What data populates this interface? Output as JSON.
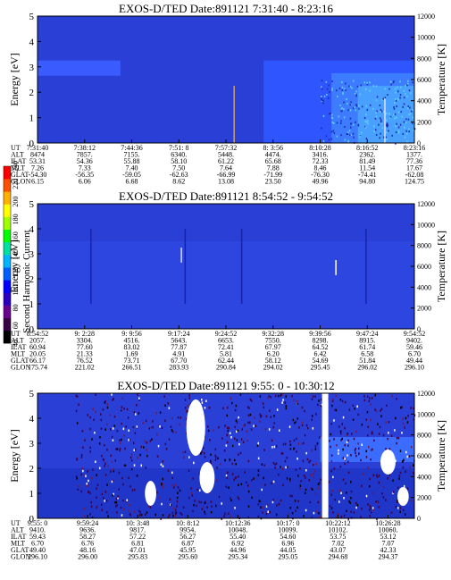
{
  "colorbar": {
    "label": "Second Harmonic Current",
    "ticks": [
      "40",
      "60",
      "80",
      "100",
      "120",
      "140",
      "160",
      "180",
      "200",
      "220",
      "240"
    ],
    "colors": [
      "#000000",
      "#3a0046",
      "#6a0090",
      "#2a00c0",
      "#0000ff",
      "#0060ff",
      "#00b4ff",
      "#00e0a0",
      "#00ff00",
      "#a0ff00",
      "#ffff00",
      "#ffb000",
      "#ff5000",
      "#ff0000"
    ]
  },
  "chart_data": [
    {
      "type": "heatmap",
      "title": "EXOS-D/TED  Date:891121  7:31:40 - 8:23:16",
      "ylabel": "Energy [eV]",
      "y2label": "Temperature [K]",
      "ylim": [
        0,
        5
      ],
      "y2lim": [
        0,
        12000
      ],
      "yticks": [
        "0",
        "1",
        "2",
        "3",
        "4",
        "5"
      ],
      "y2ticks": [
        "0",
        "2000",
        "4000",
        "6000",
        "8000",
        "10000",
        "12000"
      ],
      "table_rows": [
        "UT",
        "ALT",
        "ILAT",
        "MLT",
        "GLAT",
        "GLON"
      ],
      "columns": [
        [
          "7:31:40",
          "8474",
          "53.31",
          "7.26",
          "-54.30",
          "6.15"
        ],
        [
          "7:38:12",
          "7857.",
          "54.36",
          "7.33",
          "-56.35",
          "6.06"
        ],
        [
          "7:44:36",
          "7155.",
          "55.88",
          "7.40",
          "-59.05",
          "6.68"
        ],
        [
          "7:51: 8",
          "6340.",
          "58.10",
          "7.50",
          "-62.63",
          "8.62"
        ],
        [
          "7:57:32",
          "5448.",
          "61.22",
          "7.64",
          "-66.99",
          "13.08"
        ],
        [
          "8: 3:56",
          "4474.",
          "65.68",
          "7.88",
          "-71.99",
          "23.50"
        ],
        [
          "8:10:28",
          "3416.",
          "72.33",
          "8.46",
          "-76.30",
          "49.96"
        ],
        [
          "8:16:52",
          "2362.",
          "81.49",
          "11.54",
          "-74.41",
          "94.80"
        ],
        [
          "8:23:16",
          "1377.",
          "77.36",
          "17.67",
          "-62.08",
          "124.75"
        ]
      ]
    },
    {
      "type": "heatmap",
      "title": "EXOS-D/TED  Date:891121  8:54:52 - 9:54:52",
      "ylabel": "Energy [eV]",
      "y2label": "Temperature [K]",
      "ylim": [
        0,
        5
      ],
      "y2lim": [
        0,
        12000
      ],
      "yticks": [
        "0",
        "1",
        "2",
        "3",
        "4",
        "5"
      ],
      "y2ticks": [
        "0",
        "2000",
        "4000",
        "6000",
        "8000",
        "10000",
        "12000"
      ],
      "table_rows": [
        "UT",
        "ALT",
        "ILAT",
        "MLT",
        "GLAT",
        "GLON"
      ],
      "columns": [
        [
          "8:54:52",
          "2057.",
          "60.94",
          "20.05",
          "66.17",
          "175.74"
        ],
        [
          "9: 2:28",
          "3304.",
          "77.60",
          "21.33",
          "76.52",
          "221.02"
        ],
        [
          "9: 9:56",
          "4516.",
          "83.02",
          "1.69",
          "73.71",
          "266.51"
        ],
        [
          "9:17:24",
          "5643.",
          "77.87",
          "4.91",
          "67.70",
          "283.93"
        ],
        [
          "9:24:52",
          "6653.",
          "72.41",
          "5.81",
          "62.44",
          "290.84"
        ],
        [
          "9:32:28",
          "7550.",
          "67.97",
          "6.20",
          "58.12",
          "294.02"
        ],
        [
          "9:39:56",
          "8298.",
          "64.52",
          "6.42",
          "54.69",
          "295.45"
        ],
        [
          "9:47:24",
          "8915.",
          "61.74",
          "6.58",
          "51.84",
          "296.02"
        ],
        [
          "9:54:52",
          "9402.",
          "59.46",
          "6.70",
          "49.44",
          "296.10"
        ]
      ]
    },
    {
      "type": "heatmap",
      "title": "EXOS-D/TED  Date:891121  9:55: 0 - 10:30:12",
      "ylabel": "Energy [eV]",
      "y2label": "Temperature [K]",
      "ylim": [
        0,
        5
      ],
      "y2lim": [
        0,
        12000
      ],
      "yticks": [
        "0",
        "1",
        "2",
        "3",
        "4",
        "5"
      ],
      "y2ticks": [
        "0",
        "2000",
        "4000",
        "6000",
        "8000",
        "10000",
        "12000"
      ],
      "table_rows": [
        "UT",
        "ALT",
        "ILAT",
        "MLT",
        "GLAT",
        "GLON"
      ],
      "columns": [
        [
          "9:55: 0",
          "9410.",
          "59.43",
          "6.70",
          "49.40",
          "296.10"
        ],
        [
          "9:59:24",
          "9636.",
          "58.27",
          "6.76",
          "48.16",
          "296.00"
        ],
        [
          "10: 3:48",
          "9817.",
          "57.22",
          "6.81",
          "47.01",
          "295.83"
        ],
        [
          "10: 8:12",
          "9954.",
          "56.27",
          "6.87",
          "45.95",
          "295.60"
        ],
        [
          "10:12:36",
          "10048.",
          "55.40",
          "6.92",
          "44.96",
          "295.34"
        ],
        [
          "10:17: 0",
          "10099.",
          "54.60",
          "6.96",
          "44.05",
          "295.05"
        ],
        [
          "10:22:12",
          "10102.",
          "53.75",
          "7.02",
          "43.07",
          "294.68"
        ],
        [
          "10:26:28",
          "10060.",
          "53.12",
          "7.07",
          "42.33",
          "294.37"
        ]
      ]
    }
  ]
}
